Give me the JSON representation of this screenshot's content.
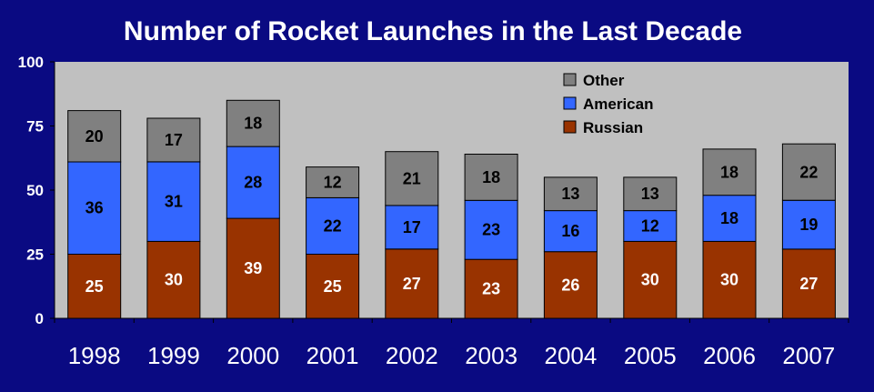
{
  "chart_data": {
    "type": "bar",
    "stacked": true,
    "title": "Number of Rocket Launches in the Last Decade",
    "categories": [
      "1998",
      "1999",
      "2000",
      "2001",
      "2002",
      "2003",
      "2004",
      "2005",
      "2006",
      "2007"
    ],
    "series": [
      {
        "name": "Russian",
        "color": "#993300",
        "label_color": "#ffffff",
        "values": [
          25,
          30,
          39,
          25,
          27,
          23,
          26,
          30,
          30,
          27
        ]
      },
      {
        "name": "American",
        "color": "#3366ff",
        "label_color": "#000000",
        "values": [
          36,
          31,
          28,
          22,
          17,
          23,
          16,
          12,
          18,
          19
        ]
      },
      {
        "name": "Other",
        "color": "#808080",
        "label_color": "#000000",
        "values": [
          20,
          17,
          18,
          12,
          21,
          18,
          13,
          13,
          18,
          22
        ]
      }
    ],
    "ylim": [
      0,
      100
    ],
    "yticks": [
      0,
      25,
      50,
      75,
      100
    ],
    "legend_order": [
      "Other",
      "American",
      "Russian"
    ],
    "legend_position": "top-right",
    "plot_background": "#c0c0c0",
    "page_background": "#0a0a82",
    "grid": false
  }
}
